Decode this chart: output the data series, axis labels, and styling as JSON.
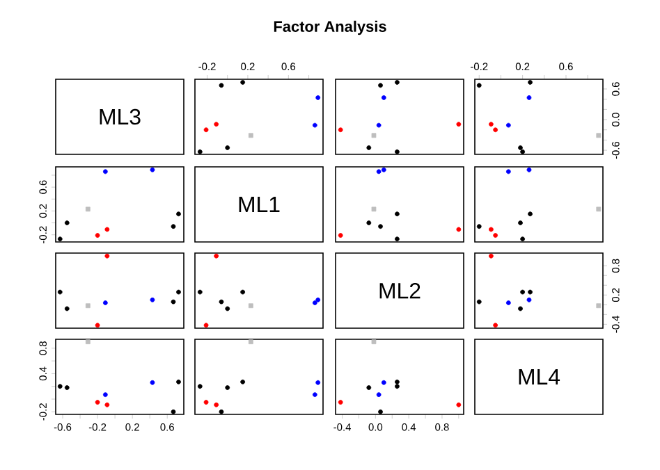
{
  "chart_data": [
    {
      "type": "other",
      "title": "Factor Analysis"
    },
    {
      "type": "other",
      "title": "ML3"
    },
    {
      "type": "scatter",
      "xlim": [
        -0.32,
        0.94
      ],
      "ylim": [
        -0.68,
        0.79
      ],
      "tick_labels": "x",
      "xticks": [
        -0.2,
        {
          "value": 0,
          "label": null
        },
        0.2,
        {
          "value": 0.4,
          "label": null
        },
        0.6,
        {
          "value": 0.8,
          "label": null
        }
      ],
      "series": [
        {
          "color": "#000000",
          "marker": "circle",
          "x": [
            -0.27,
            0,
            -0.06,
            0.15
          ],
          "values": [
            -0.63,
            -0.55,
            0.67,
            0.73
          ]
        },
        {
          "color": "#ff0000",
          "marker": "circle",
          "x": [
            -0.21,
            -0.11
          ],
          "values": [
            -0.2,
            -0.09
          ]
        },
        {
          "color": "#0000ff",
          "marker": "circle",
          "x": [
            0.86,
            0.89
          ],
          "values": [
            -0.11,
            0.43
          ]
        },
        {
          "color": "#bebebe",
          "marker": "square",
          "x": [
            0.23
          ],
          "values": [
            -0.31
          ]
        }
      ]
    },
    {
      "type": "scatter",
      "xlim": [
        -0.48,
        1.06
      ],
      "ylim": [
        -0.68,
        0.79
      ],
      "tick_labels": false,
      "series": [
        {
          "color": "#000000",
          "marker": "circle",
          "x": [
            0.26,
            -0.08,
            0.06,
            0.26
          ],
          "values": [
            -0.63,
            -0.55,
            0.67,
            0.73
          ]
        },
        {
          "color": "#ff0000",
          "marker": "circle",
          "x": [
            -0.42,
            1.0
          ],
          "values": [
            -0.2,
            -0.09
          ]
        },
        {
          "color": "#0000ff",
          "marker": "circle",
          "x": [
            0.04,
            0.1
          ],
          "values": [
            -0.11,
            0.43
          ]
        },
        {
          "color": "#bebebe",
          "marker": "square",
          "x": [
            -0.02
          ],
          "values": [
            -0.31
          ]
        }
      ]
    },
    {
      "type": "scatter",
      "xlim": [
        -0.24,
        0.94
      ],
      "ylim": [
        -0.68,
        0.79
      ],
      "xticks": [
        -0.2,
        {
          "value": 0,
          "label": null
        },
        0.2,
        {
          "value": 0.4,
          "label": null
        },
        0.6,
        {
          "value": 0.8,
          "label": null
        }
      ],
      "yticks": [
        -0.6,
        {
          "value": -0.4,
          "label": null
        },
        {
          "value": -0.2,
          "label": null
        },
        {
          "value": 0,
          "label": "0.0"
        },
        {
          "value": 0.2,
          "label": null
        },
        {
          "value": 0.4,
          "label": null
        },
        0.6
      ],
      "series": [
        {
          "color": "#000000",
          "marker": "circle",
          "x": [
            0.2,
            0.18,
            -0.2,
            0.27
          ],
          "values": [
            -0.63,
            -0.55,
            0.67,
            0.73
          ]
        },
        {
          "color": "#ff0000",
          "marker": "circle",
          "x": [
            -0.05,
            -0.09
          ],
          "values": [
            -0.2,
            -0.09
          ]
        },
        {
          "color": "#0000ff",
          "marker": "circle",
          "x": [
            0.07,
            0.26
          ],
          "values": [
            -0.11,
            0.43
          ]
        },
        {
          "color": "#bebebe",
          "marker": "square",
          "x": [
            0.9
          ],
          "values": [
            -0.31
          ]
        }
      ]
    },
    {
      "type": "scatter",
      "xlim": [
        -0.68,
        0.79
      ],
      "ylim": [
        -0.32,
        0.94
      ],
      "tick_labels": "y",
      "yticks": [
        -0.2,
        {
          "value": 0,
          "label": null
        },
        0.2,
        {
          "value": 0.4,
          "label": null
        },
        0.6,
        {
          "value": 0.8,
          "label": null
        }
      ],
      "series": [
        {
          "color": "#000000",
          "marker": "circle",
          "x": [
            -0.63,
            -0.55,
            0.67,
            0.73
          ],
          "values": [
            -0.27,
            0,
            -0.06,
            0.15
          ]
        },
        {
          "color": "#ff0000",
          "marker": "circle",
          "x": [
            -0.2,
            -0.09
          ],
          "values": [
            -0.21,
            -0.11
          ]
        },
        {
          "color": "#0000ff",
          "marker": "circle",
          "x": [
            -0.11,
            0.43
          ],
          "values": [
            0.86,
            0.89
          ]
        },
        {
          "color": "#bebebe",
          "marker": "square",
          "x": [
            -0.31
          ],
          "values": [
            0.23
          ]
        }
      ]
    },
    {
      "type": "other",
      "title": "ML1"
    },
    {
      "type": "scatter",
      "xlim": [
        -0.48,
        1.06
      ],
      "ylim": [
        -0.32,
        0.94
      ],
      "tick_labels": false,
      "series": [
        {
          "color": "#000000",
          "marker": "circle",
          "x": [
            0.26,
            -0.08,
            0.06,
            0.26
          ],
          "values": [
            -0.27,
            0,
            -0.06,
            0.15
          ]
        },
        {
          "color": "#ff0000",
          "marker": "circle",
          "x": [
            -0.42,
            1.0
          ],
          "values": [
            -0.21,
            -0.11
          ]
        },
        {
          "color": "#0000ff",
          "marker": "circle",
          "x": [
            0.04,
            0.1
          ],
          "values": [
            0.86,
            0.89
          ]
        },
        {
          "color": "#bebebe",
          "marker": "square",
          "x": [
            -0.02
          ],
          "values": [
            0.23
          ]
        }
      ]
    },
    {
      "type": "scatter",
      "xlim": [
        -0.24,
        0.94
      ],
      "ylim": [
        -0.32,
        0.94
      ],
      "tick_labels": false,
      "series": [
        {
          "color": "#000000",
          "marker": "circle",
          "x": [
            0.2,
            0.18,
            -0.2,
            0.27
          ],
          "values": [
            -0.27,
            0,
            -0.06,
            0.15
          ]
        },
        {
          "color": "#ff0000",
          "marker": "circle",
          "x": [
            -0.05,
            -0.09
          ],
          "values": [
            -0.21,
            -0.11
          ]
        },
        {
          "color": "#0000ff",
          "marker": "circle",
          "x": [
            0.07,
            0.26
          ],
          "values": [
            0.86,
            0.89
          ]
        },
        {
          "color": "#bebebe",
          "marker": "square",
          "x": [
            0.9
          ],
          "values": [
            0.23
          ]
        }
      ]
    },
    {
      "type": "scatter",
      "xlim": [
        -0.68,
        0.79
      ],
      "ylim": [
        -0.48,
        1.06
      ],
      "tick_labels": false,
      "series": [
        {
          "color": "#000000",
          "marker": "circle",
          "x": [
            -0.63,
            -0.55,
            0.67,
            0.73
          ],
          "values": [
            0.26,
            -0.08,
            0.06,
            0.26
          ]
        },
        {
          "color": "#ff0000",
          "marker": "circle",
          "x": [
            -0.2,
            -0.09
          ],
          "values": [
            -0.42,
            1.0
          ]
        },
        {
          "color": "#0000ff",
          "marker": "circle",
          "x": [
            -0.11,
            0.43
          ],
          "values": [
            0.04,
            0.1
          ]
        },
        {
          "color": "#bebebe",
          "marker": "square",
          "x": [
            -0.31
          ],
          "values": [
            -0.02
          ]
        }
      ]
    },
    {
      "type": "scatter",
      "xlim": [
        -0.32,
        0.94
      ],
      "ylim": [
        -0.48,
        1.06
      ],
      "tick_labels": false,
      "series": [
        {
          "color": "#000000",
          "marker": "circle",
          "x": [
            -0.27,
            0,
            -0.06,
            0.15
          ],
          "values": [
            0.26,
            -0.08,
            0.06,
            0.26
          ]
        },
        {
          "color": "#ff0000",
          "marker": "circle",
          "x": [
            -0.21,
            -0.11
          ],
          "values": [
            -0.42,
            1.0
          ]
        },
        {
          "color": "#0000ff",
          "marker": "circle",
          "x": [
            0.86,
            0.89
          ],
          "values": [
            0.04,
            0.1
          ]
        },
        {
          "color": "#bebebe",
          "marker": "square",
          "x": [
            0.23
          ],
          "values": [
            -0.02
          ]
        }
      ]
    },
    {
      "type": "other",
      "title": "ML2"
    },
    {
      "type": "scatter",
      "xlim": [
        -0.24,
        0.94
      ],
      "ylim": [
        -0.48,
        1.06
      ],
      "tick_labels": "y",
      "yticks": [
        -0.4,
        {
          "value": -0.2,
          "label": null
        },
        {
          "value": 0,
          "label": null
        },
        0.2,
        {
          "value": 0.4,
          "label": null
        },
        {
          "value": 0.6,
          "label": null
        },
        0.8
      ],
      "series": [
        {
          "color": "#000000",
          "marker": "circle",
          "x": [
            0.2,
            0.18,
            -0.2,
            0.27
          ],
          "values": [
            0.26,
            -0.08,
            0.06,
            0.26
          ]
        },
        {
          "color": "#ff0000",
          "marker": "circle",
          "x": [
            -0.05,
            -0.09
          ],
          "values": [
            -0.42,
            1.0
          ]
        },
        {
          "color": "#0000ff",
          "marker": "circle",
          "x": [
            0.07,
            0.26
          ],
          "values": [
            0.04,
            0.1
          ]
        },
        {
          "color": "#bebebe",
          "marker": "square",
          "x": [
            0.9
          ],
          "values": [
            -0.02
          ]
        }
      ]
    },
    {
      "type": "scatter",
      "xlim": [
        -0.68,
        0.79
      ],
      "ylim": [
        -0.24,
        0.94
      ],
      "xticks": [
        -0.6,
        {
          "value": -0.4,
          "label": null
        },
        -0.2,
        {
          "value": 0,
          "label": null
        },
        0.2,
        {
          "value": 0.4,
          "label": null
        },
        0.6
      ],
      "yticks": [
        -0.2,
        {
          "value": 0,
          "label": null
        },
        {
          "value": 0.2,
          "label": null
        },
        0.4,
        {
          "value": 0.6,
          "label": null
        },
        0.8
      ],
      "series": [
        {
          "color": "#000000",
          "marker": "circle",
          "x": [
            -0.63,
            -0.55,
            0.67,
            0.73
          ],
          "values": [
            0.2,
            0.18,
            -0.2,
            0.27
          ]
        },
        {
          "color": "#ff0000",
          "marker": "circle",
          "x": [
            -0.2,
            -0.09
          ],
          "values": [
            -0.05,
            -0.09
          ]
        },
        {
          "color": "#0000ff",
          "marker": "circle",
          "x": [
            -0.11,
            0.43
          ],
          "values": [
            0.07,
            0.26
          ]
        },
        {
          "color": "#bebebe",
          "marker": "square",
          "x": [
            -0.31
          ],
          "values": [
            0.9
          ]
        }
      ]
    },
    {
      "type": "scatter",
      "xlim": [
        -0.32,
        0.94
      ],
      "ylim": [
        -0.24,
        0.94
      ],
      "tick_labels": false,
      "series": [
        {
          "color": "#000000",
          "marker": "circle",
          "x": [
            -0.27,
            0,
            -0.06,
            0.15
          ],
          "values": [
            0.2,
            0.18,
            -0.2,
            0.27
          ]
        },
        {
          "color": "#ff0000",
          "marker": "circle",
          "x": [
            -0.21,
            -0.11
          ],
          "values": [
            -0.05,
            -0.09
          ]
        },
        {
          "color": "#0000ff",
          "marker": "circle",
          "x": [
            0.86,
            0.89
          ],
          "values": [
            0.07,
            0.26
          ]
        },
        {
          "color": "#bebebe",
          "marker": "square",
          "x": [
            0.23
          ],
          "values": [
            0.9
          ]
        }
      ]
    },
    {
      "type": "scatter",
      "xlim": [
        -0.48,
        1.06
      ],
      "ylim": [
        -0.24,
        0.94
      ],
      "tick_labels": "x",
      "xticks": [
        -0.4,
        {
          "value": -0.2,
          "label": null
        },
        {
          "value": 0,
          "label": "0.0"
        },
        {
          "value": 0.2,
          "label": null
        },
        0.4,
        {
          "value": 0.6,
          "label": null
        },
        0.8,
        {
          "value": 1.0,
          "label": null
        }
      ],
      "series": [
        {
          "color": "#000000",
          "marker": "circle",
          "x": [
            0.26,
            -0.08,
            0.06,
            0.26
          ],
          "values": [
            0.2,
            0.18,
            -0.2,
            0.27
          ]
        },
        {
          "color": "#ff0000",
          "marker": "circle",
          "x": [
            -0.42,
            1.0
          ],
          "values": [
            -0.05,
            -0.09
          ]
        },
        {
          "color": "#0000ff",
          "marker": "circle",
          "x": [
            0.04,
            0.1
          ],
          "values": [
            0.07,
            0.26
          ]
        },
        {
          "color": "#bebebe",
          "marker": "square",
          "x": [
            -0.02
          ],
          "values": [
            0.9
          ]
        }
      ]
    },
    {
      "type": "other",
      "title": "ML4"
    }
  ]
}
